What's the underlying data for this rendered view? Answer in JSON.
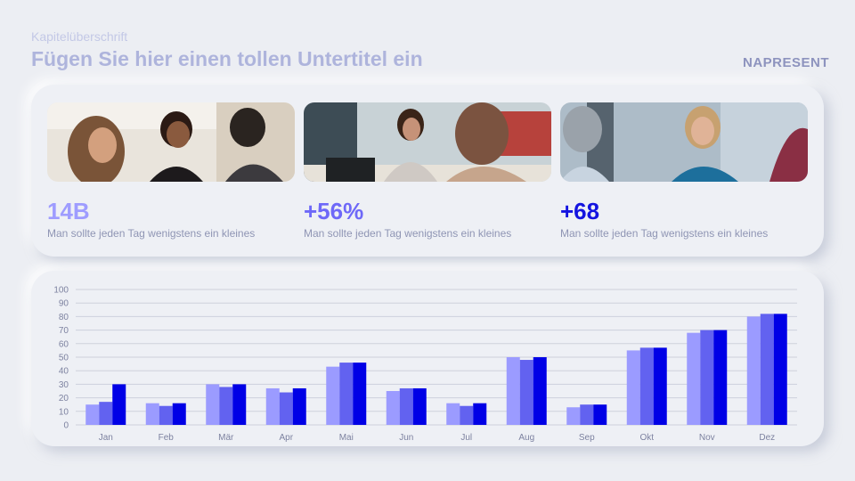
{
  "header": {
    "chapter": "Kapitelüberschrift",
    "subtitle": "Fügen Sie hier einen tollen Untertitel ein",
    "brand": "NAPRESENT"
  },
  "stats": [
    {
      "value": "14B",
      "desc": "Man sollte jeden Tag wenigstens ein kleines",
      "color": "#9e9cff"
    },
    {
      "value": "+56%",
      "desc": "Man sollte jeden Tag wenigstens ein kleines",
      "color": "#6e68f8"
    },
    {
      "value": "+68",
      "desc": "Man sollte jeden Tag wenigstens ein kleines",
      "color": "#1414e0"
    }
  ],
  "photos": [
    "business-meeting-photo",
    "office-discussion-photo",
    "smiling-colleague-photo"
  ],
  "chart_data": {
    "type": "bar",
    "categories": [
      "Jan",
      "Feb",
      "Mär",
      "Apr",
      "Mai",
      "Jun",
      "Jul",
      "Aug",
      "Sep",
      "Okt",
      "Nov",
      "Dez"
    ],
    "series": [
      {
        "values": [
          15,
          16,
          30,
          27,
          43,
          25,
          16,
          50,
          13,
          55,
          68,
          80
        ],
        "color": "#9b9bff"
      },
      {
        "values": [
          17,
          14,
          28,
          24,
          46,
          27,
          14,
          48,
          15,
          57,
          70,
          82
        ],
        "color": "#6262f0"
      },
      {
        "values": [
          30,
          16,
          30,
          27,
          46,
          27,
          16,
          50,
          15,
          57,
          70,
          82
        ],
        "color": "#0000e6"
      }
    ],
    "ylim": [
      0,
      100
    ],
    "yticks": [
      0,
      10,
      20,
      30,
      40,
      50,
      60,
      70,
      80,
      90,
      100
    ],
    "grid": true
  }
}
